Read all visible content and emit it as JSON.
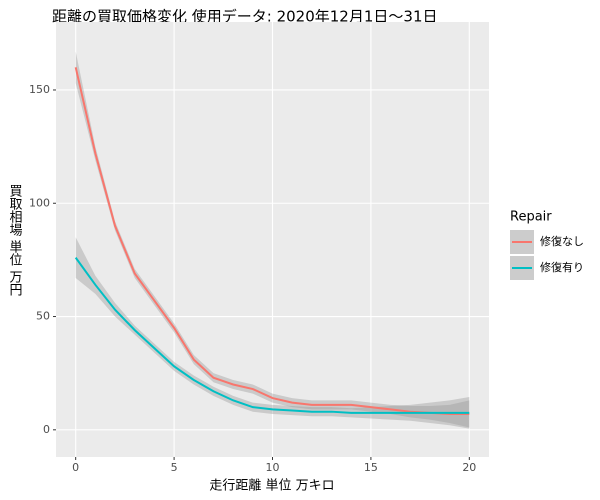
{
  "chart_data": {
    "type": "smooth",
    "title": "距離の買取価格変化 使用データ: 2020年12月1日～31日",
    "x_label": "走行距離 単位 万キロ",
    "y_label": "買取相場 単位 万円",
    "legend_title": "Repair",
    "x": [
      0,
      1,
      2,
      3,
      4,
      5,
      6,
      7,
      8,
      9,
      10,
      11,
      12,
      13,
      14,
      15,
      16,
      17,
      18,
      19,
      20
    ],
    "series": [
      {
        "name": "修復なし",
        "color": "#F8766D",
        "values": [
          160,
          122,
          90,
          69,
          57,
          45,
          31,
          23,
          20,
          18,
          14,
          12,
          11,
          11,
          11,
          10,
          9,
          8,
          7.5,
          7,
          7
        ],
        "lower": [
          153,
          119,
          88,
          67,
          55,
          43,
          29,
          21,
          18,
          16,
          12,
          10,
          9,
          9,
          9,
          8,
          7,
          5.5,
          4.5,
          3,
          1
        ],
        "upper": [
          167,
          125,
          92,
          71,
          59,
          47,
          33,
          25,
          22,
          20,
          16,
          14,
          13,
          13,
          13,
          12,
          11,
          10.5,
          10.5,
          11,
          13
        ]
      },
      {
        "name": "修復有り",
        "color": "#00BFC4",
        "values": [
          76,
          64,
          53,
          44,
          36,
          28,
          22,
          17,
          13,
          10,
          9,
          8.5,
          8,
          8,
          7.5,
          7.5,
          7.5,
          7.5,
          7.5,
          7.5,
          7.5
        ],
        "lower": [
          67,
          60,
          50,
          42,
          34,
          26,
          20,
          15,
          11,
          8,
          7,
          6.5,
          6,
          6,
          5.5,
          5,
          4.5,
          4,
          3,
          2,
          0.5
        ],
        "upper": [
          85,
          68,
          56,
          46,
          38,
          30,
          24,
          19,
          15,
          12,
          11,
          10.5,
          10,
          10,
          9.5,
          10,
          10.5,
          11,
          12,
          13,
          14.5
        ]
      }
    ],
    "xlim": [
      -1,
      21
    ],
    "ylim": [
      -12,
      180
    ],
    "xticks": [
      0,
      5,
      10,
      15,
      20
    ],
    "yticks": [
      0,
      50,
      100,
      150
    ],
    "grid": true,
    "legend_position": "right"
  }
}
